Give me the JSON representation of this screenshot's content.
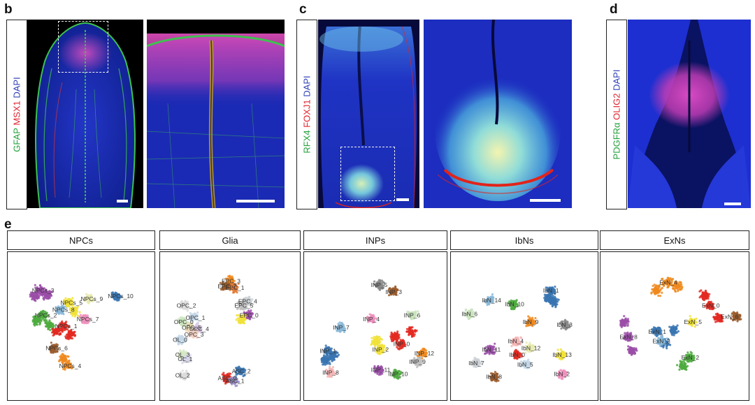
{
  "panel_letters": {
    "b": "b",
    "c": "c",
    "d": "d",
    "e": "e"
  },
  "panel_b": {
    "markers": [
      {
        "text": "GFAP",
        "color": "#22a13a"
      },
      {
        "text": " MSX1",
        "color": "#e0232e"
      },
      {
        "text": " DAPI",
        "color": "#2f3fb8"
      }
    ]
  },
  "panel_c": {
    "markers": [
      {
        "text": "RFX4",
        "color": "#22a13a"
      },
      {
        "text": " FOXJ1",
        "color": "#e0232e"
      },
      {
        "text": " DAPI",
        "color": "#2f3fb8"
      }
    ]
  },
  "panel_d": {
    "markers": [
      {
        "text": "PDGFRα",
        "color": "#22a13a"
      },
      {
        "text": " OLIG2",
        "color": "#e0232e"
      },
      {
        "text": " DAPI",
        "color": "#2f3fb8"
      }
    ]
  },
  "panel_e": {
    "umaps": [
      {
        "title": "NPCs",
        "clusters": [
          {
            "name": "NPCs_3",
            "color": "#9b4fa8",
            "points": [
              {
                "x": 2,
                "y": 7.6
              },
              {
                "x": 1.6,
                "y": 7.2
              },
              {
                "x": 2.5,
                "y": 7.3
              }
            ]
          },
          {
            "name": "NPCs_2",
            "color": "#4fab3f",
            "points": [
              {
                "x": 2.2,
                "y": 5.8
              },
              {
                "x": 1.7,
                "y": 5.4
              },
              {
                "x": 2.7,
                "y": 5.1
              }
            ]
          },
          {
            "name": "NPCs_8",
            "color": "#89b8d8",
            "points": [
              {
                "x": 3.5,
                "y": 6.2
              }
            ]
          },
          {
            "name": "NPCs_5",
            "color": "#f1e23a",
            "points": [
              {
                "x": 4.1,
                "y": 6.7
              },
              {
                "x": 4.5,
                "y": 6.1
              }
            ]
          },
          {
            "name": "NPCs_9",
            "color": "#e7eab0",
            "points": [
              {
                "x": 5.6,
                "y": 7.0
              }
            ]
          },
          {
            "name": "NPCs_1",
            "color": "#e32a22",
            "points": [
              {
                "x": 3.7,
                "y": 5.0
              },
              {
                "x": 3.2,
                "y": 4.6
              },
              {
                "x": 4.2,
                "y": 4.4
              }
            ]
          },
          {
            "name": "NPCs_7",
            "color": "#ef8fbc",
            "points": [
              {
                "x": 5.3,
                "y": 5.5
              }
            ]
          },
          {
            "name": "NPCs_6",
            "color": "#9a5a2a",
            "points": [
              {
                "x": 3.0,
                "y": 3.4
              }
            ]
          },
          {
            "name": "NPCs_4",
            "color": "#f08a1f",
            "points": [
              {
                "x": 4.0,
                "y": 2.1
              },
              {
                "x": 3.7,
                "y": 2.6
              }
            ]
          },
          {
            "name": "NPCs_10",
            "color": "#3a76b2",
            "points": [
              {
                "x": 7.6,
                "y": 7.2
              }
            ]
          }
        ]
      },
      {
        "title": "Glia",
        "clusters": [
          {
            "name": "EPC_3",
            "color": "#f08a1f",
            "points": [
              {
                "x": 5.0,
                "y": 8.3
              }
            ]
          },
          {
            "name": "EPC_2",
            "color": "#9a5a2a",
            "points": [
              {
                "x": 4.7,
                "y": 7.9
              }
            ]
          },
          {
            "name": "EPC_1",
            "color": "#e47b36",
            "points": [
              {
                "x": 5.3,
                "y": 7.8
              }
            ]
          },
          {
            "name": "EPC_4",
            "color": "#ccd1d6",
            "points": [
              {
                "x": 6.3,
                "y": 6.8
              }
            ]
          },
          {
            "name": "EPC_5",
            "color": "#bfbfbf",
            "points": [
              {
                "x": 6.0,
                "y": 6.5
              }
            ]
          },
          {
            "name": "EPC_0",
            "color": "#9b4fa8",
            "points": [
              {
                "x": 6.4,
                "y": 5.8
              }
            ]
          },
          {
            "name": "EPC_2b",
            "color": "#f1e23a",
            "points": [
              {
                "x": 5.9,
                "y": 5.5
              }
            ]
          },
          {
            "name": "OPC_2",
            "color": "#dcdcdc",
            "points": [
              {
                "x": 1.5,
                "y": 6.5
              }
            ]
          },
          {
            "name": "OPC_1",
            "color": "#c4d7e8",
            "points": [
              {
                "x": 2.2,
                "y": 5.6
              }
            ]
          },
          {
            "name": "OPC_0",
            "color": "#c9e3bd",
            "points": [
              {
                "x": 1.3,
                "y": 5.3
              }
            ]
          },
          {
            "name": "OPC_5",
            "color": "#e6ddb4",
            "points": [
              {
                "x": 1.9,
                "y": 4.9
              }
            ]
          },
          {
            "name": "OPC_4",
            "color": "#dcc8e6",
            "points": [
              {
                "x": 2.5,
                "y": 4.8
              }
            ]
          },
          {
            "name": "OPC_3",
            "color": "#f3d0c3",
            "points": [
              {
                "x": 2.1,
                "y": 4.4
              }
            ]
          },
          {
            "name": "OL_0",
            "color": "#c4d7e8",
            "points": [
              {
                "x": 1.2,
                "y": 4.0
              }
            ]
          },
          {
            "name": "OL_3",
            "color": "#d6e8c4",
            "points": [
              {
                "x": 1.4,
                "y": 2.9
              }
            ]
          },
          {
            "name": "OL_1",
            "color": "#d6d6e8",
            "points": [
              {
                "x": 1.6,
                "y": 2.6
              }
            ]
          },
          {
            "name": "OL_2",
            "color": "#dcdcdc",
            "points": [
              {
                "x": 1.4,
                "y": 1.4
              }
            ]
          },
          {
            "name": "ASC_2",
            "color": "#3a76b2",
            "points": [
              {
                "x": 5.8,
                "y": 1.7
              }
            ]
          },
          {
            "name": "ASC_0",
            "color": "#e32a22",
            "points": [
              {
                "x": 4.7,
                "y": 1.2
              }
            ]
          },
          {
            "name": "ASC_1",
            "color": "#9b8fc4",
            "points": [
              {
                "x": 5.3,
                "y": 1.0
              }
            ]
          }
        ]
      },
      {
        "title": "INPs",
        "clusters": [
          {
            "name": "INP_5",
            "color": "#8a8a8a",
            "points": [
              {
                "x": 5.3,
                "y": 8.0
              }
            ]
          },
          {
            "name": "INP_3",
            "color": "#9a5a2a",
            "points": [
              {
                "x": 6.4,
                "y": 7.5
              }
            ]
          },
          {
            "name": "INP_6",
            "color": "#c9e3bd",
            "points": [
              {
                "x": 7.8,
                "y": 5.8
              }
            ]
          },
          {
            "name": "INP_4",
            "color": "#ef8fbc",
            "points": [
              {
                "x": 4.7,
                "y": 5.5
              }
            ]
          },
          {
            "name": "INP_7",
            "color": "#89b8d8",
            "points": [
              {
                "x": 2.4,
                "y": 4.9
              }
            ]
          },
          {
            "name": "INP_1",
            "color": "#3a76b2",
            "points": [
              {
                "x": 1.4,
                "y": 3.2
              },
              {
                "x": 1.8,
                "y": 2.8
              },
              {
                "x": 1.2,
                "y": 2.5
              }
            ]
          },
          {
            "name": "INP_8",
            "color": "#f4b5b5",
            "points": [
              {
                "x": 1.6,
                "y": 1.6
              }
            ]
          },
          {
            "name": "INP_2",
            "color": "#f1e23a",
            "points": [
              {
                "x": 5.4,
                "y": 3.3
              },
              {
                "x": 5.1,
                "y": 3.9
              }
            ]
          },
          {
            "name": "INP_0",
            "color": "#e32a22",
            "points": [
              {
                "x": 7.0,
                "y": 3.7
              },
              {
                "x": 7.7,
                "y": 4.6
              },
              {
                "x": 6.5,
                "y": 4.2
              }
            ]
          },
          {
            "name": "INP_12",
            "color": "#f08a1f",
            "points": [
              {
                "x": 8.6,
                "y": 3.0
              }
            ]
          },
          {
            "name": "INP_9",
            "color": "#bfbfbf",
            "points": [
              {
                "x": 8.2,
                "y": 2.4
              }
            ]
          },
          {
            "name": "INP_11",
            "color": "#9b4fa8",
            "points": [
              {
                "x": 5.3,
                "y": 1.8
              }
            ]
          },
          {
            "name": "INP_10",
            "color": "#4fab3f",
            "points": [
              {
                "x": 6.6,
                "y": 1.5
              }
            ]
          }
        ]
      },
      {
        "title": "IbNs",
        "clusters": [
          {
            "name": "IbN_1",
            "color": "#3a76b2",
            "points": [
              {
                "x": 7.0,
                "y": 7.6
              },
              {
                "x": 7.2,
                "y": 6.8
              },
              {
                "x": 6.8,
                "y": 7.1
              }
            ]
          },
          {
            "name": "IbN_3",
            "color": "#8a8a8a",
            "points": [
              {
                "x": 8.0,
                "y": 5.1
              }
            ]
          },
          {
            "name": "IbN_14",
            "color": "#89b8d8",
            "points": [
              {
                "x": 2.5,
                "y": 6.9
              }
            ]
          },
          {
            "name": "IbN_10",
            "color": "#4fab3f",
            "points": [
              {
                "x": 4.2,
                "y": 6.6
              }
            ]
          },
          {
            "name": "IbN_6",
            "color": "#c9e3bd",
            "points": [
              {
                "x": 1.0,
                "y": 5.9
              }
            ]
          },
          {
            "name": "IbN_9",
            "color": "#f08a1f",
            "points": [
              {
                "x": 5.5,
                "y": 5.3
              }
            ]
          },
          {
            "name": "IbN_4",
            "color": "#f4b5b5",
            "points": [
              {
                "x": 4.4,
                "y": 3.9
              }
            ]
          },
          {
            "name": "IbN_12",
            "color": "#e7eab0",
            "points": [
              {
                "x": 5.4,
                "y": 3.4
              }
            ]
          },
          {
            "name": "IbN_11",
            "color": "#9b4fa8",
            "points": [
              {
                "x": 2.5,
                "y": 3.3
              }
            ]
          },
          {
            "name": "IbN_0",
            "color": "#e32a22",
            "points": [
              {
                "x": 4.5,
                "y": 2.9
              }
            ]
          },
          {
            "name": "IbN_13",
            "color": "#f1e23a",
            "points": [
              {
                "x": 7.7,
                "y": 2.9
              }
            ]
          },
          {
            "name": "IbN_7",
            "color": "#ccd1d6",
            "points": [
              {
                "x": 1.5,
                "y": 2.3
              }
            ]
          },
          {
            "name": "IbN_5",
            "color": "#c4d7e8",
            "points": [
              {
                "x": 5.1,
                "y": 2.2
              }
            ]
          },
          {
            "name": "IbN_8",
            "color": "#9a5a2a",
            "points": [
              {
                "x": 2.8,
                "y": 1.3
              }
            ]
          },
          {
            "name": "IbN_2",
            "color": "#ef8fbc",
            "points": [
              {
                "x": 7.8,
                "y": 1.5
              }
            ]
          }
        ]
      },
      {
        "title": "ExNs",
        "clusters": [
          {
            "name": "ExN_4",
            "color": "#f08a1f",
            "points": [
              {
                "x": 4.5,
                "y": 8.2
              },
              {
                "x": 3.7,
                "y": 7.6
              },
              {
                "x": 5.2,
                "y": 7.9
              }
            ]
          },
          {
            "name": "ExN_0",
            "color": "#e32a22",
            "points": [
              {
                "x": 7.6,
                "y": 6.5
              },
              {
                "x": 8.2,
                "y": 5.6
              },
              {
                "x": 7.2,
                "y": 7.2
              }
            ]
          },
          {
            "name": "ExN_5",
            "color": "#f1e23a",
            "points": [
              {
                "x": 6.3,
                "y": 5.3
              }
            ]
          },
          {
            "name": "ExN_6",
            "color": "#9a5a2a",
            "points": [
              {
                "x": 9.5,
                "y": 5.7
              }
            ]
          },
          {
            "name": "ExN_8",
            "color": "#9b4fa8",
            "points": [
              {
                "x": 1.6,
                "y": 4.2
              },
              {
                "x": 1.3,
                "y": 5.3
              },
              {
                "x": 1.9,
                "y": 3.2
              }
            ]
          },
          {
            "name": "ExN_1",
            "color": "#3a76b2",
            "points": [
              {
                "x": 3.7,
                "y": 4.6
              },
              {
                "x": 4.9,
                "y": 4.7
              },
              {
                "x": 4.3,
                "y": 3.7
              }
            ]
          },
          {
            "name": "ExN_3",
            "color": "#89b8d8",
            "points": [
              {
                "x": 4.0,
                "y": 3.9
              }
            ]
          },
          {
            "name": "ExN_2",
            "color": "#4fab3f",
            "points": [
              {
                "x": 6.1,
                "y": 2.7
              },
              {
                "x": 5.6,
                "y": 2.1
              }
            ]
          }
        ]
      }
    ]
  },
  "palette": {
    "dapi_blue": "#1d2fc8",
    "tissue_dark": "#0b1470",
    "magenta": "#d23aa8",
    "green": "#2fbf4a",
    "cyan": "#7fe0e8",
    "yellow": "#f7ea7a",
    "red": "#e2231a"
  }
}
